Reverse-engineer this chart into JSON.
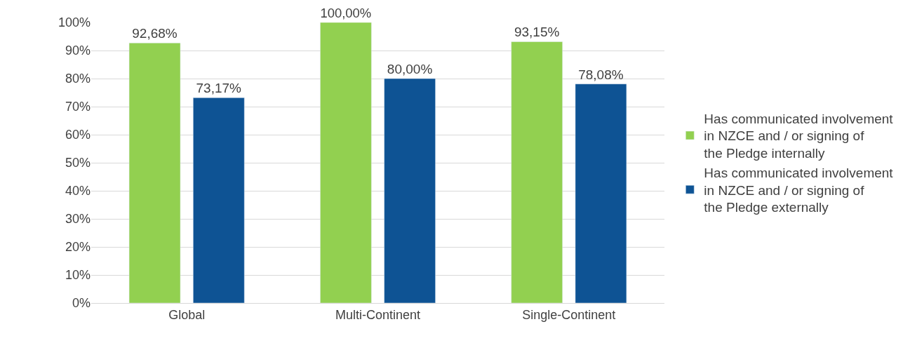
{
  "chart_data": {
    "type": "bar",
    "categories": [
      "Global",
      "Multi-Continent",
      "Single-Continent"
    ],
    "series": [
      {
        "name": "Has communicated involvement in NZCE and / or signing of the Pledge internally",
        "color": "#92d050",
        "values": [
          92.68,
          100,
          93.15
        ],
        "value_labels": [
          "92,68%",
          "100,00%",
          "93,15%"
        ]
      },
      {
        "name": "Has communicated involvement in NZCE and / or signing of the Pledge externally",
        "color": "#0e5394",
        "values": [
          73.17,
          80,
          78.08
        ],
        "value_labels": [
          "73,17%",
          "80,00%",
          "78,08%"
        ]
      }
    ],
    "ylim": [
      0,
      100
    ],
    "yticks": [
      {
        "value": 0,
        "label": "0%"
      },
      {
        "value": 10,
        "label": "10%"
      },
      {
        "value": 20,
        "label": "20%"
      },
      {
        "value": 30,
        "label": "30%"
      },
      {
        "value": 40,
        "label": "40%"
      },
      {
        "value": 50,
        "label": "50%"
      },
      {
        "value": 60,
        "label": "60%"
      },
      {
        "value": 70,
        "label": "70%"
      },
      {
        "value": 80,
        "label": "80%"
      },
      {
        "value": 90,
        "label": "90%"
      },
      {
        "value": 100,
        "label": "100%"
      }
    ],
    "grid": "y",
    "legend": "right"
  }
}
